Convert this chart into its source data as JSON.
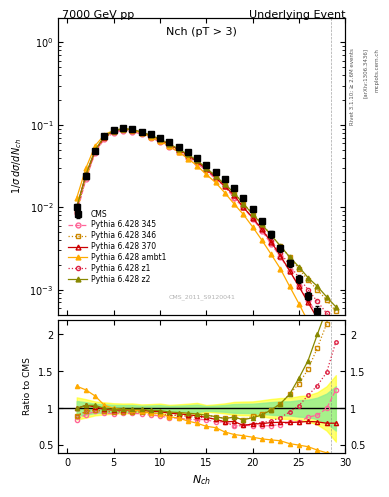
{
  "title_left": "7000 GeV pp",
  "title_right": "Underlying Event",
  "plot_label": "Nch (pT > 3)",
  "watermark": "CMS_2011_S9120041",
  "ylabel_main": "1/σ dσ/dN_{ch}",
  "ylabel_ratio": "Ratio to CMS",
  "xlabel": "N_{ch}",
  "xlim": [
    -1,
    30
  ],
  "ylim_main": [
    0.0005,
    2.0
  ],
  "ylim_ratio": [
    0.4,
    2.2
  ],
  "cms_x": [
    1,
    2,
    3,
    4,
    5,
    6,
    7,
    8,
    9,
    10,
    11,
    12,
    13,
    14,
    15,
    16,
    17,
    18,
    19,
    20,
    21,
    22,
    23,
    24,
    25,
    26,
    27,
    28,
    29
  ],
  "cms_y": [
    0.01,
    0.024,
    0.048,
    0.073,
    0.086,
    0.091,
    0.089,
    0.083,
    0.077,
    0.069,
    0.062,
    0.054,
    0.047,
    0.04,
    0.033,
    0.027,
    0.022,
    0.017,
    0.013,
    0.0095,
    0.0068,
    0.0047,
    0.0032,
    0.0021,
    0.00135,
    0.00085,
    0.00055,
    0.00035,
    0.0002
  ],
  "cms_yerr": [
    0.001,
    0.002,
    0.003,
    0.004,
    0.004,
    0.004,
    0.004,
    0.003,
    0.003,
    0.003,
    0.002,
    0.002,
    0.002,
    0.002,
    0.001,
    0.001,
    0.001,
    0.001,
    0.0008,
    0.0006,
    0.0005,
    0.0004,
    0.0003,
    0.0002,
    0.00015,
    0.0001,
    8e-05,
    7e-05,
    6e-05
  ],
  "p345_x": [
    1,
    2,
    3,
    4,
    5,
    6,
    7,
    8,
    9,
    10,
    11,
    12,
    13,
    14,
    15,
    16,
    17,
    18,
    19,
    20,
    21,
    22,
    23,
    24,
    25,
    26,
    27,
    28,
    29
  ],
  "p345_y": [
    0.0085,
    0.022,
    0.046,
    0.068,
    0.08,
    0.085,
    0.083,
    0.077,
    0.07,
    0.062,
    0.054,
    0.047,
    0.04,
    0.034,
    0.028,
    0.022,
    0.018,
    0.013,
    0.01,
    0.0073,
    0.0052,
    0.0036,
    0.0025,
    0.0017,
    0.0011,
    0.00075,
    0.0005,
    0.00035,
    0.00025
  ],
  "p346_x": [
    1,
    2,
    3,
    4,
    5,
    6,
    7,
    8,
    9,
    10,
    11,
    12,
    13,
    14,
    15,
    16,
    17,
    18,
    19,
    20,
    21,
    22,
    23,
    24,
    25,
    26,
    27,
    28,
    29
  ],
  "p346_y": [
    0.009,
    0.023,
    0.047,
    0.07,
    0.082,
    0.087,
    0.085,
    0.079,
    0.072,
    0.064,
    0.056,
    0.049,
    0.042,
    0.036,
    0.03,
    0.024,
    0.019,
    0.015,
    0.011,
    0.0085,
    0.0063,
    0.0046,
    0.0034,
    0.0025,
    0.0018,
    0.0013,
    0.001,
    0.00075,
    0.00055
  ],
  "p370_x": [
    1,
    2,
    3,
    4,
    5,
    6,
    7,
    8,
    9,
    10,
    11,
    12,
    13,
    14,
    15,
    16,
    17,
    18,
    19,
    20,
    21,
    22,
    23,
    24,
    25,
    26,
    27,
    28,
    29
  ],
  "p370_y": [
    0.01,
    0.025,
    0.049,
    0.072,
    0.084,
    0.089,
    0.087,
    0.081,
    0.074,
    0.066,
    0.058,
    0.05,
    0.043,
    0.036,
    0.029,
    0.023,
    0.018,
    0.014,
    0.01,
    0.0075,
    0.0054,
    0.0038,
    0.0026,
    0.0017,
    0.0011,
    0.0007,
    0.00045,
    0.00028,
    0.00016
  ],
  "pambt1_x": [
    1,
    2,
    3,
    4,
    5,
    6,
    7,
    8,
    9,
    10,
    11,
    12,
    13,
    14,
    15,
    16,
    17,
    18,
    19,
    20,
    21,
    22,
    23,
    24,
    25,
    26,
    27,
    28,
    29
  ],
  "pambt1_y": [
    0.013,
    0.03,
    0.056,
    0.076,
    0.086,
    0.09,
    0.087,
    0.08,
    0.072,
    0.064,
    0.055,
    0.047,
    0.039,
    0.032,
    0.025,
    0.02,
    0.015,
    0.011,
    0.0082,
    0.0058,
    0.004,
    0.0027,
    0.0018,
    0.0011,
    0.00068,
    0.00041,
    0.00024,
    0.00014,
    7.5e-05
  ],
  "pz1_x": [
    1,
    2,
    3,
    4,
    5,
    6,
    7,
    8,
    9,
    10,
    11,
    12,
    13,
    14,
    15,
    16,
    17,
    18,
    19,
    20,
    21,
    22,
    23,
    24,
    25,
    26,
    27,
    28,
    29
  ],
  "pz1_y": [
    0.009,
    0.023,
    0.047,
    0.07,
    0.082,
    0.087,
    0.085,
    0.079,
    0.072,
    0.064,
    0.056,
    0.049,
    0.042,
    0.035,
    0.029,
    0.023,
    0.018,
    0.013,
    0.01,
    0.0075,
    0.0055,
    0.0039,
    0.0028,
    0.002,
    0.0014,
    0.001,
    0.00072,
    0.00052,
    0.00038
  ],
  "pz2_x": [
    1,
    2,
    3,
    4,
    5,
    6,
    7,
    8,
    9,
    10,
    11,
    12,
    13,
    14,
    15,
    16,
    17,
    18,
    19,
    20,
    21,
    22,
    23,
    24,
    25,
    26,
    27,
    28,
    29
  ],
  "pz2_y": [
    0.01,
    0.025,
    0.05,
    0.073,
    0.085,
    0.09,
    0.088,
    0.082,
    0.075,
    0.067,
    0.059,
    0.051,
    0.044,
    0.037,
    0.03,
    0.024,
    0.019,
    0.015,
    0.011,
    0.0083,
    0.0062,
    0.0046,
    0.0034,
    0.0025,
    0.0019,
    0.0014,
    0.0011,
    0.00082,
    0.00062
  ],
  "col_cms": "#000000",
  "col_345": "#ff6699",
  "col_346": "#cc8800",
  "col_370": "#cc0000",
  "col_ambt1": "#ffaa00",
  "col_z1": "#cc0000",
  "col_z2": "#888800",
  "bg_color": "#ffffff"
}
